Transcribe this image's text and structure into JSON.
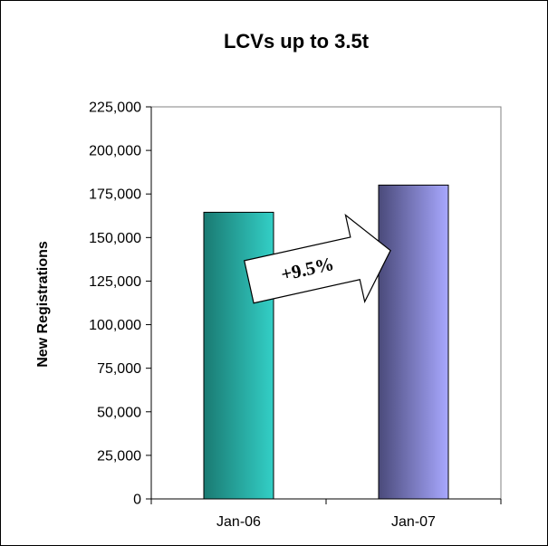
{
  "chart_data": {
    "type": "bar",
    "title": "LCVs up to 3.5t",
    "xlabel": "",
    "ylabel": "New Registrations",
    "categories": [
      "Jan-06",
      "Jan-07"
    ],
    "values": [
      164500,
      180100
    ],
    "ylim": [
      0,
      225000
    ],
    "yticks": [
      "0",
      "25,000",
      "50,000",
      "75,000",
      "100,000",
      "125,000",
      "150,000",
      "175,000",
      "200,000",
      "225,000"
    ],
    "annotation": "+9.5%",
    "grid": false,
    "legend": "none",
    "colors": {
      "bar1_dark": "#1a7a72",
      "bar1_light": "#33cfc6",
      "bar2_dark": "#4a4a7a",
      "bar2_light": "#a8a8ff",
      "axis": "#808080"
    }
  }
}
